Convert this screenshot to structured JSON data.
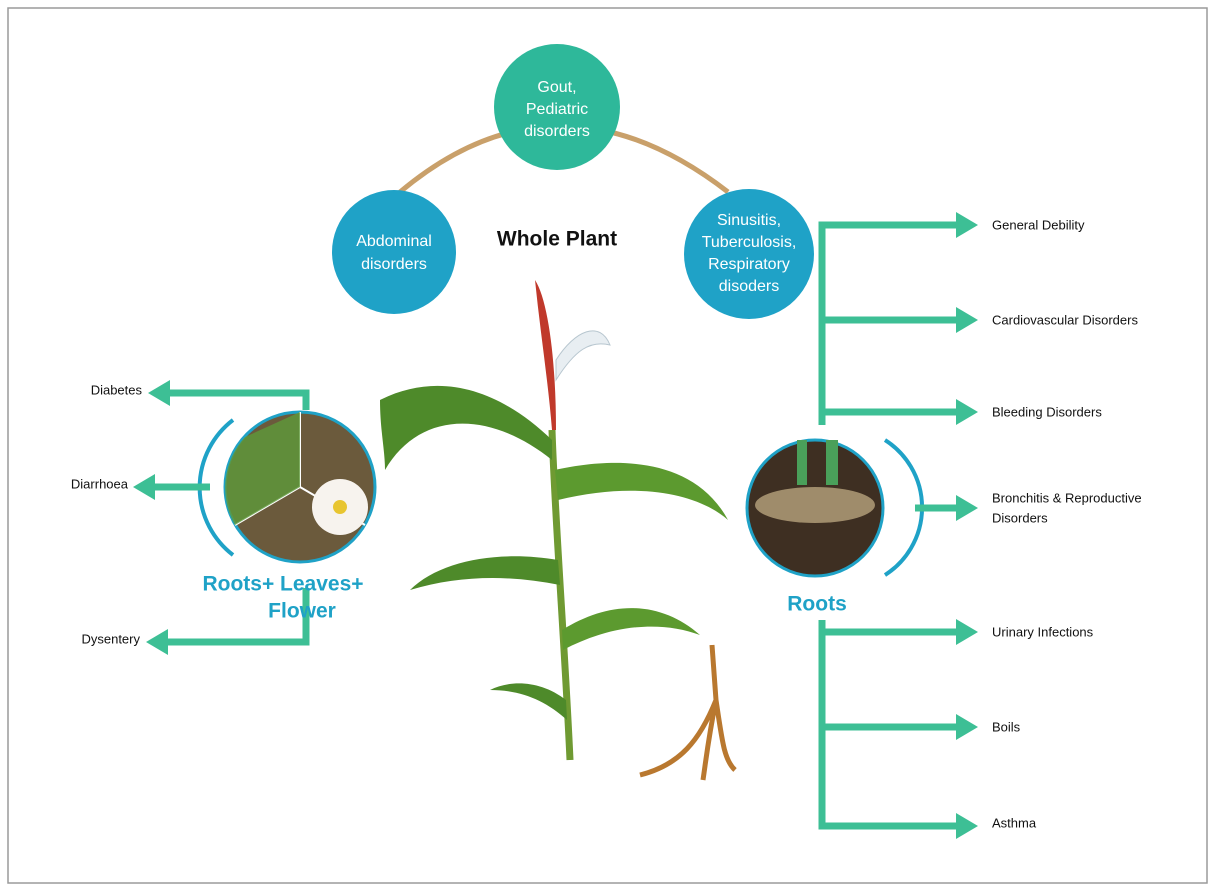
{
  "title": "Whole Plant",
  "whole_plant_uses": [
    {
      "lines": [
        "Abdominal",
        "disorders"
      ]
    },
    {
      "lines": [
        "Gout,",
        "Pediatric",
        "disorders"
      ]
    },
    {
      "lines": [
        "Sinusitis,",
        "Tuberculosis,",
        "Respiratory",
        "disoders"
      ]
    }
  ],
  "left_group": {
    "label_lines": [
      "Roots+ Leaves+",
      "Flower"
    ],
    "uses": [
      "Diabetes",
      "Diarrhoea",
      "Dysentery"
    ]
  },
  "right_group": {
    "label": "Roots",
    "uses": [
      {
        "lines": [
          "General Debility"
        ]
      },
      {
        "lines": [
          "Cardiovascular Disorders"
        ]
      },
      {
        "lines": [
          "Bleeding Disorders"
        ]
      },
      {
        "lines": [
          "Bronchitis & Reproductive",
          "Disorders"
        ]
      },
      {
        "lines": [
          "Urinary Infections"
        ]
      },
      {
        "lines": [
          "Boils"
        ]
      },
      {
        "lines": [
          "Asthma"
        ]
      }
    ]
  }
}
